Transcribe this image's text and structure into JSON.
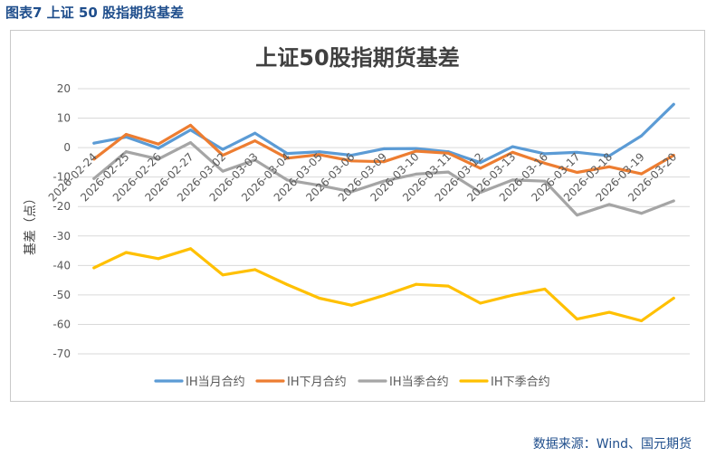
{
  "figure_caption": "图表7  上证 50 股指期货基差",
  "source_note": "数据来源：Wind、国元期货",
  "colors": {
    "IH当月合约": "#5b9bd5",
    "IH下月合约": "#ed7d31",
    "IH当季合约": "#a5a5a5",
    "IH下季合约": "#ffc000",
    "caption": "#1f4e8c",
    "grid": "#d9d9d9",
    "text": "#595959"
  },
  "chart_data": {
    "type": "line",
    "title": "上证50股指期货基差",
    "xlabel": "",
    "ylabel": "基差（点）",
    "ylim": [
      -70,
      20
    ],
    "yticks": [
      20,
      10,
      0,
      -10,
      -20,
      -30,
      -40,
      -50,
      -60,
      -70
    ],
    "grid": true,
    "legend_position": "bottom",
    "categories": [
      "2026-02-24",
      "2026-02-25",
      "2026-02-26",
      "2026-02-27",
      "2026-03-02",
      "2026-03-03",
      "2026-03-04",
      "2026-03-05",
      "2026-03-06",
      "2026-03-09",
      "2026-03-10",
      "2026-03-11",
      "2026-03-12",
      "2026-03-13",
      "2026-03-16",
      "2026-03-17",
      "2026-03-18",
      "2026-03-19",
      "2026-03-20"
    ],
    "series": [
      {
        "name": "IH当月合约",
        "values": [
          1.5,
          3.6,
          -0.2,
          6.0,
          -0.6,
          4.9,
          -2.0,
          -1.4,
          -2.6,
          -0.4,
          -0.3,
          -1.4,
          -5.1,
          0.3,
          -2.1,
          -1.6,
          -2.8,
          4.0,
          14.7
        ]
      },
      {
        "name": "IH下月合约",
        "values": [
          -3.9,
          4.5,
          1.2,
          7.6,
          -2.6,
          2.3,
          -3.6,
          -2.4,
          -4.5,
          -4.8,
          -1.2,
          -1.9,
          -7.0,
          -1.6,
          -5.3,
          -8.4,
          -6.5,
          -8.9,
          -2.6
        ]
      },
      {
        "name": "IH当季合约",
        "values": [
          -10.5,
          -1.4,
          -3.9,
          1.7,
          -8.0,
          -4.2,
          -11.0,
          -12.8,
          -15.0,
          -11.4,
          -9.0,
          -8.3,
          -15.2,
          -11.0,
          -11.4,
          -22.9,
          -19.3,
          -22.3,
          -18.1
        ]
      },
      {
        "name": "IH下季合约",
        "values": [
          -40.8,
          -35.6,
          -37.7,
          -34.3,
          -43.2,
          -41.4,
          -46.5,
          -51.1,
          -53.5,
          -50.2,
          -46.4,
          -47.0,
          -52.8,
          -50.1,
          -48.0,
          -58.2,
          -55.9,
          -58.8,
          -51.1
        ]
      }
    ]
  }
}
